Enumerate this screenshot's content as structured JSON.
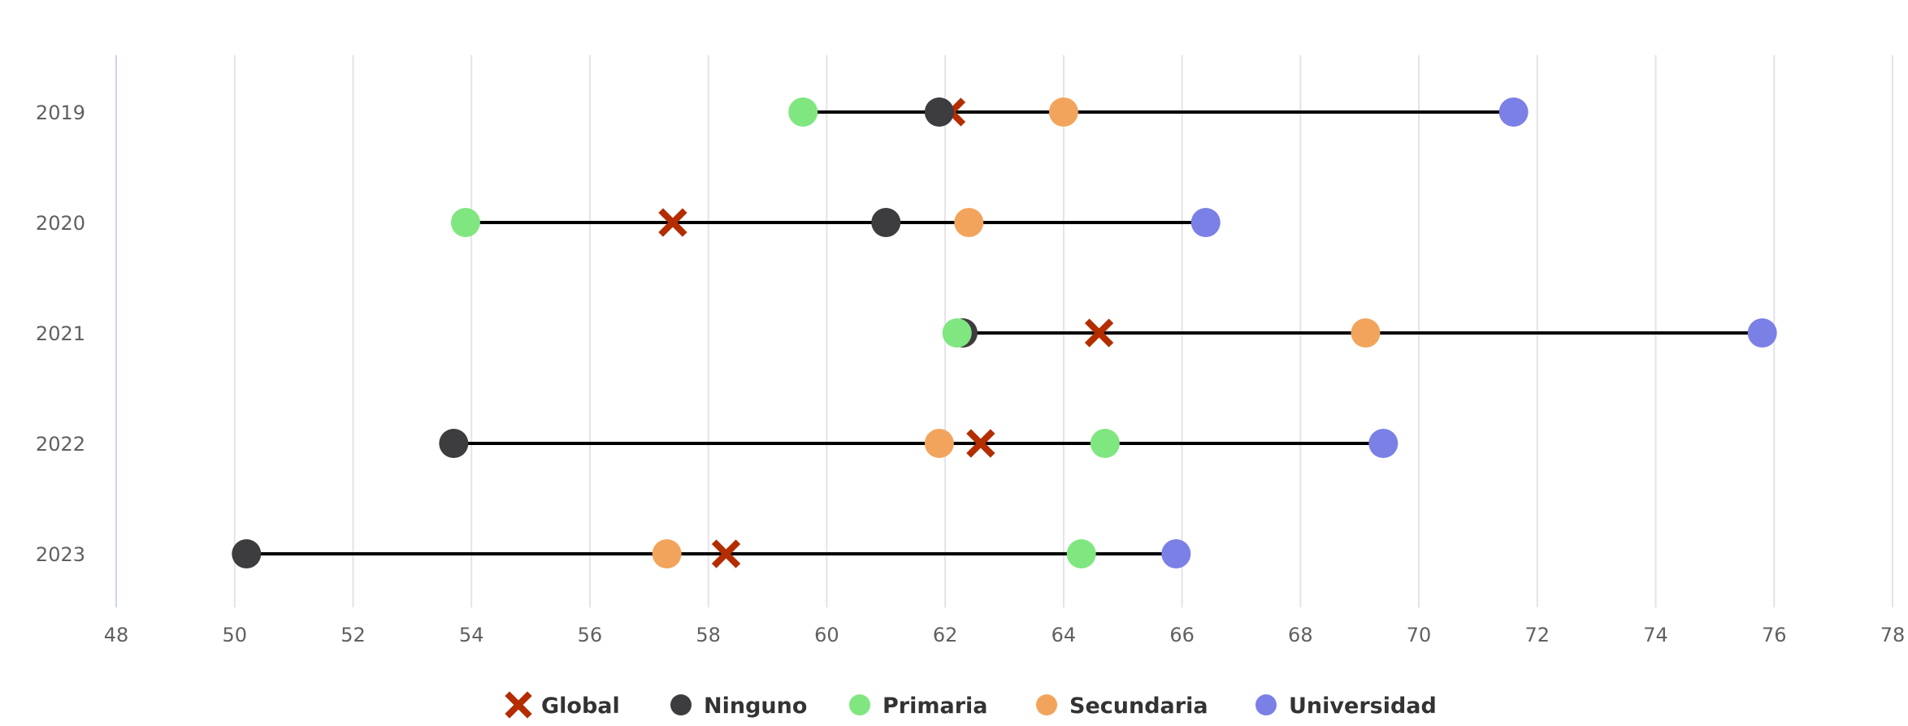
{
  "chart_data": {
    "type": "scatter",
    "subtype": "dumbbell",
    "title": "",
    "xlabel": "",
    "ylabel": "",
    "orientation": "horizontal",
    "categories": [
      "2019",
      "2020",
      "2021",
      "2022",
      "2023"
    ],
    "xlim": [
      48,
      78
    ],
    "xticks": [
      48,
      50,
      52,
      54,
      56,
      58,
      60,
      62,
      64,
      66,
      68,
      70,
      72,
      74,
      76,
      78
    ],
    "grid": "vertical",
    "legend_position": "bottom-center",
    "range_line_color": "#000000",
    "series": [
      {
        "name": "Global",
        "marker": "x",
        "color": "#b32d00",
        "values": [
          62.1,
          57.4,
          64.6,
          62.6,
          58.3
        ]
      },
      {
        "name": "Ninguno",
        "marker": "circle",
        "color": "#3d3d3f",
        "values": [
          61.9,
          61.0,
          62.3,
          53.7,
          50.2
        ]
      },
      {
        "name": "Primaria",
        "marker": "circle",
        "color": "#80e680",
        "values": [
          59.6,
          53.9,
          62.2,
          64.7,
          64.3
        ]
      },
      {
        "name": "Secundaria",
        "marker": "circle",
        "color": "#f3a45c",
        "values": [
          64.0,
          62.4,
          69.1,
          61.9,
          57.3
        ]
      },
      {
        "name": "Universidad",
        "marker": "circle",
        "color": "#7b80e6",
        "values": [
          71.6,
          66.4,
          75.8,
          69.4,
          65.9
        ]
      }
    ]
  }
}
